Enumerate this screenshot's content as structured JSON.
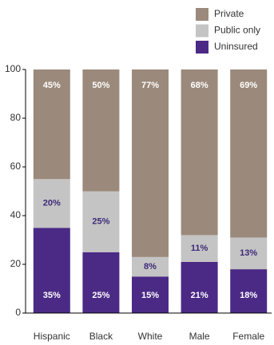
{
  "chart_data": {
    "type": "stacked-bar",
    "categories": [
      "Hispanic",
      "Black",
      "White",
      "Male",
      "Female"
    ],
    "series": [
      {
        "name": "Private",
        "color": "#9b8a7b",
        "values": [
          45,
          50,
          77,
          68,
          69
        ],
        "value_labels": [
          "45%",
          "50%",
          "77%",
          "68%",
          "69%"
        ]
      },
      {
        "name": "Public only",
        "color": "#c4c4c4",
        "values": [
          20,
          25,
          8,
          11,
          13
        ],
        "value_labels": [
          "20%",
          "25%",
          "8%",
          "11%",
          "13%"
        ]
      },
      {
        "name": "Uninsured",
        "color": "#4b2a86",
        "values": [
          35,
          25,
          15,
          21,
          18
        ],
        "value_labels": [
          "35%",
          "25%",
          "15%",
          "21%",
          "18%"
        ]
      }
    ],
    "ylim": [
      0,
      100
    ],
    "yticks": [
      0,
      20,
      40,
      60,
      80,
      100
    ],
    "grid": false
  }
}
